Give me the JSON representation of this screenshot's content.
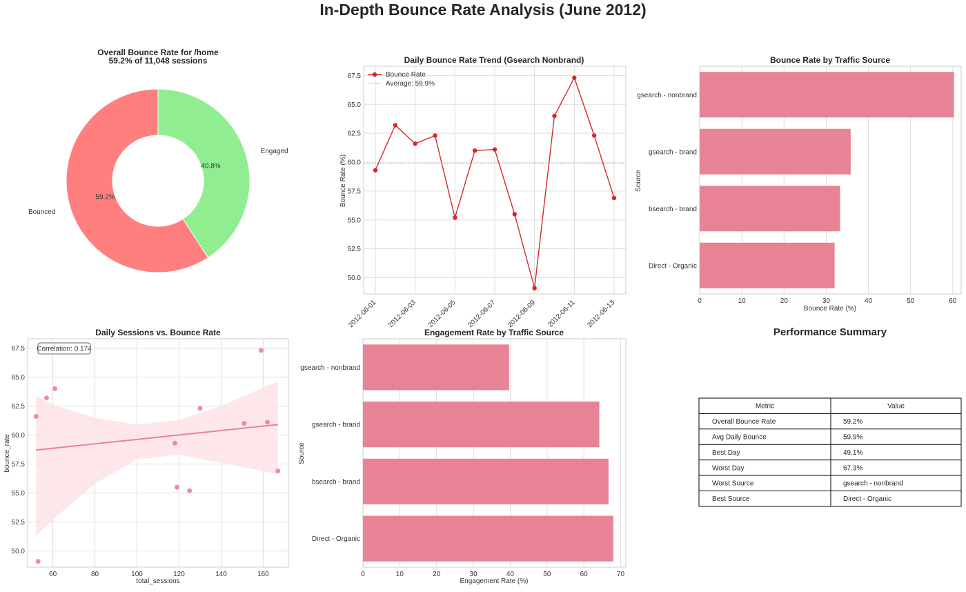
{
  "figure": {
    "title": "In-Depth Bounce Rate Analysis (June 2012)"
  },
  "colors": {
    "bounced": "#ff7f7f",
    "engaged": "#90ee90",
    "line": "#d62728",
    "average": "#f5a623",
    "bar": "#e88395",
    "scatter": "#e88395",
    "band": "#fde3e8"
  },
  "chart_data": [
    {
      "id": "donut",
      "type": "pie",
      "title": "Overall Bounce Rate for /home",
      "subtitle": "59.2% of 11,048 sessions",
      "labels": [
        "Bounced",
        "Engaged"
      ],
      "values": [
        59.2,
        40.8
      ],
      "pct_labels": [
        "59.2%",
        "40.8%"
      ],
      "hole": true
    },
    {
      "id": "trend",
      "type": "line",
      "title": "Daily Bounce Rate Trend (Gsearch Nonbrand)",
      "ylabel": "Bounce Rate (%)",
      "xlabel": "",
      "x": [
        "2012-06-01",
        "2012-06-02",
        "2012-06-03",
        "2012-06-04",
        "2012-06-05",
        "2012-06-06",
        "2012-06-07",
        "2012-06-08",
        "2012-06-09",
        "2012-06-10",
        "2012-06-11",
        "2012-06-12",
        "2012-06-13"
      ],
      "xtick_labels": [
        "2012-06-01",
        "2012-06-03",
        "2012-06-05",
        "2012-06-07",
        "2012-06-09",
        "2012-06-11",
        "2012-06-13"
      ],
      "series": [
        {
          "name": "Bounce Rate",
          "values": [
            59.3,
            63.2,
            61.6,
            62.3,
            55.2,
            61.0,
            61.1,
            55.5,
            49.1,
            64.0,
            67.3,
            62.3,
            56.9
          ]
        }
      ],
      "average": {
        "name": "Average: 59.9%",
        "value": 59.9
      },
      "ylim": [
        48.6,
        68.3
      ],
      "yticks": [
        50.0,
        52.5,
        55.0,
        57.5,
        60.0,
        62.5,
        65.0,
        67.5
      ],
      "ytick_labels": [
        "50.0",
        "52.5",
        "55.0",
        "57.5",
        "60.0",
        "62.5",
        "65.0",
        "67.5"
      ],
      "grid": true,
      "legend": "top-left"
    },
    {
      "id": "bounce_by_source",
      "type": "bar",
      "orientation": "horizontal",
      "title": "Bounce Rate by Traffic Source",
      "xlabel": "Bounce Rate (%)",
      "ylabel": "Source",
      "categories": [
        "gsearch - nonbrand",
        "gsearch - brand",
        "bsearch - brand",
        "Direct - Organic"
      ],
      "values": [
        60.3,
        35.8,
        33.3,
        32.0
      ],
      "xlim": [
        0,
        62
      ],
      "xticks": [
        0,
        10,
        20,
        30,
        40,
        50,
        60
      ],
      "xtick_labels": [
        "0",
        "10",
        "20",
        "30",
        "40",
        "50",
        "60"
      ],
      "grid": true
    },
    {
      "id": "scatter",
      "type": "scatter",
      "title": "Daily Sessions vs. Bounce Rate",
      "xlabel": "total_sessions",
      "ylabel": "bounce_rate",
      "x": [
        52,
        57,
        61,
        53,
        118,
        119,
        125,
        130,
        151,
        159,
        162,
        167
      ],
      "y": [
        61.6,
        63.2,
        64.0,
        49.1,
        59.3,
        55.5,
        55.2,
        62.3,
        61.0,
        67.3,
        61.1,
        56.9
      ],
      "annotation": "Correlation: 0.174",
      "regression": {
        "x": [
          52,
          167
        ],
        "y": [
          58.7,
          60.9
        ]
      },
      "band": {
        "x": [
          52,
          60,
          80,
          100,
          120,
          140,
          160,
          167
        ],
        "upper": [
          63.4,
          62.6,
          61.5,
          60.9,
          61.3,
          62.5,
          64.1,
          64.6
        ],
        "lower": [
          51.3,
          52.7,
          55.8,
          57.9,
          58.3,
          57.6,
          56.9,
          56.6
        ]
      },
      "xlim": [
        48,
        172
      ],
      "ylim": [
        48.6,
        68.3
      ],
      "xticks": [
        40,
        60,
        80,
        100,
        120,
        140,
        160
      ],
      "xtick_labels": [
        "40",
        "60",
        "80",
        "100",
        "120",
        "140",
        "160"
      ],
      "yticks": [
        50.0,
        52.5,
        55.0,
        57.5,
        60.0,
        62.5,
        65.0,
        67.5
      ],
      "ytick_labels": [
        "50.0",
        "52.5",
        "55.0",
        "57.5",
        "60.0",
        "62.5",
        "65.0",
        "67.5"
      ],
      "grid": true
    },
    {
      "id": "engage_by_source",
      "type": "bar",
      "orientation": "horizontal",
      "title": "Engagement Rate by Traffic Source",
      "xlabel": "Engagement Rate (%)",
      "ylabel": "Source",
      "categories": [
        "gsearch - nonbrand",
        "gsearch - brand",
        "bsearch - brand",
        "Direct - Organic"
      ],
      "values": [
        39.7,
        64.2,
        66.7,
        68.0
      ],
      "xlim": [
        0,
        71.4
      ],
      "xticks": [
        0,
        10,
        20,
        30,
        40,
        50,
        60,
        70
      ],
      "xtick_labels": [
        "0",
        "10",
        "20",
        "30",
        "40",
        "50",
        "60",
        "70"
      ],
      "grid": true
    },
    {
      "id": "summary",
      "type": "table",
      "title": "Performance Summary",
      "columns": [
        "Metric",
        "Value"
      ],
      "rows": [
        [
          "Overall Bounce Rate",
          "59.2%"
        ],
        [
          "Avg Daily Bounce",
          "59.9%"
        ],
        [
          "Best Day",
          "49.1%"
        ],
        [
          "Worst Day",
          "67.3%"
        ],
        [
          "Worst Source",
          "gsearch - nonbrand"
        ],
        [
          "Best Source",
          "Direct - Organic"
        ]
      ]
    }
  ]
}
